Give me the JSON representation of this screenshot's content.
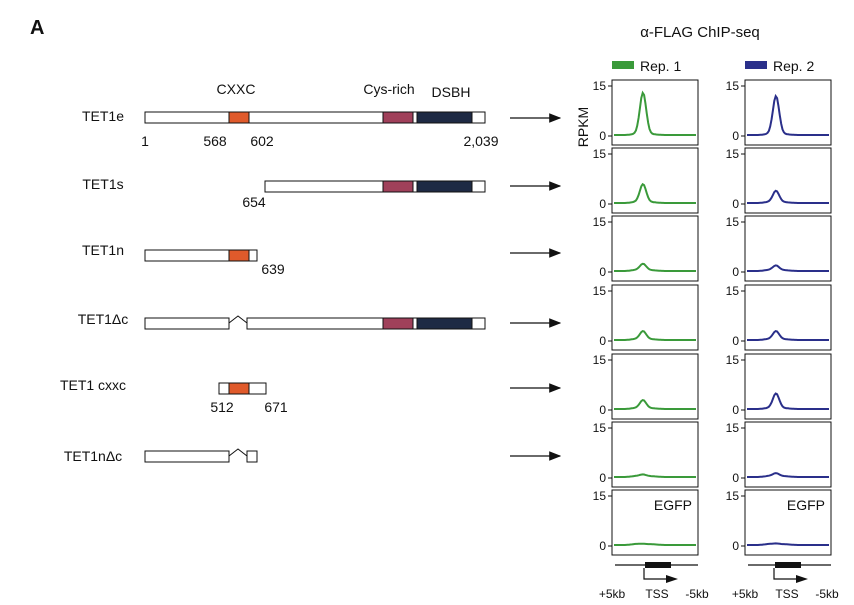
{
  "panel_letter": "A",
  "chip_title": "α-FLAG ChIP-seq",
  "domain_labels": {
    "cxxc": "CXXC",
    "cys": "Cys-rich",
    "dsbh": "DSBH"
  },
  "colors": {
    "cxxc": "#e05a2b",
    "cys": "#a0405a",
    "dsbh": "#1e2a44",
    "rep1": "#3a9a3a",
    "rep2": "#2a2f8a"
  },
  "constructs": [
    {
      "name": "TET1e",
      "positions": [
        "1",
        "568",
        "602",
        "2,039"
      ]
    },
    {
      "name": "TET1s",
      "positions": [
        "654"
      ]
    },
    {
      "name": "TET1n",
      "positions": [
        "639"
      ]
    },
    {
      "name": "TET1Δc",
      "positions": []
    },
    {
      "name": "TET1 cxxc",
      "positions": [
        "512",
        "671"
      ]
    },
    {
      "name": "TET1nΔc",
      "positions": []
    }
  ],
  "chart_data": {
    "type": "line",
    "title": "α-FLAG ChIP-seq",
    "ylabel": "RPKM",
    "ylim": [
      0,
      15
    ],
    "yticks": [
      "0",
      "15"
    ],
    "xticks": [
      "+5kb",
      "TSS",
      "-5kb"
    ],
    "series_names": [
      "Rep. 1",
      "Rep. 2"
    ],
    "panel_note": "EGFP",
    "rows": [
      {
        "construct": "TET1e",
        "rep1_peak": 12.5,
        "rep2_peak": 11.5
      },
      {
        "construct": "TET1s",
        "rep1_peak": 5.5,
        "rep2_peak": 3.5
      },
      {
        "construct": "TET1n",
        "rep1_peak": 2.0,
        "rep2_peak": 1.5
      },
      {
        "construct": "TET1Δc",
        "rep1_peak": 2.5,
        "rep2_peak": 2.5
      },
      {
        "construct": "TET1 cxxc",
        "rep1_peak": 2.5,
        "rep2_peak": 4.5
      },
      {
        "construct": "TET1nΔc",
        "rep1_peak": 0.6,
        "rep2_peak": 1.0
      },
      {
        "construct": "EGFP",
        "rep1_peak": 0.2,
        "rep2_peak": 0.3
      }
    ]
  }
}
